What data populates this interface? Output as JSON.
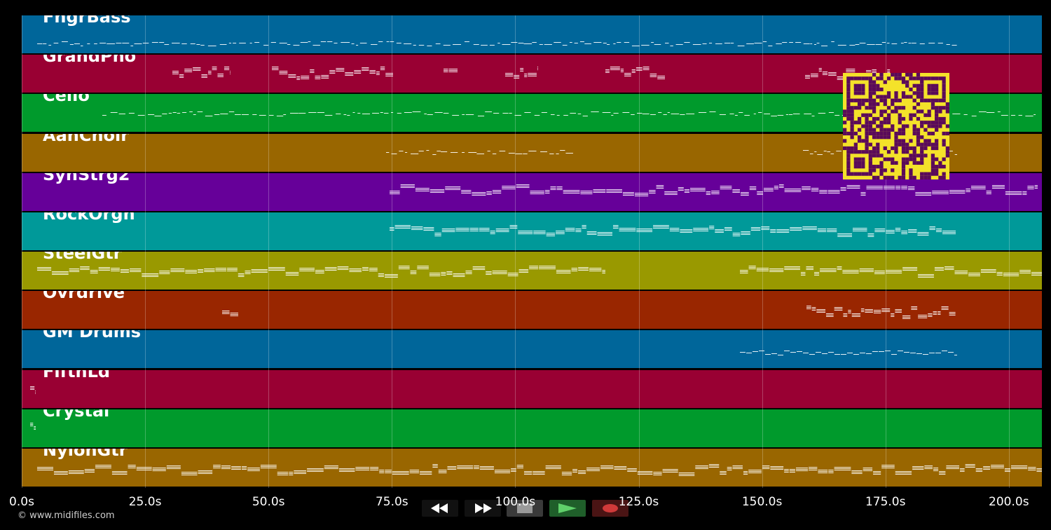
{
  "tracks": [
    {
      "name": "FngrBass",
      "color": "#00669a",
      "pattern": {
        "type": "line",
        "start": 22,
        "end": 1335,
        "y": 40,
        "density": "sparse"
      }
    },
    {
      "name": "GrandPno",
      "color": "#990033",
      "pattern": {
        "type": "blocks",
        "segments": [
          [
            215,
            298
          ],
          [
            357,
            530
          ],
          [
            602,
            622
          ],
          [
            690,
            737
          ],
          [
            833,
            918
          ],
          [
            1118,
            1240
          ]
        ],
        "y": 24
      }
    },
    {
      "name": "Cello",
      "color": "#009a2c",
      "pattern": {
        "type": "line",
        "start": 115,
        "end": 1447,
        "y": 28,
        "density": "sparse"
      }
    },
    {
      "name": "AahChoir",
      "color": "#996600",
      "pattern": {
        "type": "line",
        "segments": [
          [
            520,
            790
          ],
          [
            1115,
            1335
          ]
        ],
        "y": 26,
        "density": "sparse"
      }
    },
    {
      "name": "SynStrg2",
      "color": "#660099",
      "pattern": {
        "type": "dense",
        "start": 525,
        "end": 1450,
        "y": 22
      }
    },
    {
      "name": "RockOrgn",
      "color": "#009999",
      "pattern": {
        "type": "dense",
        "start": 525,
        "end": 1333,
        "y": 24
      }
    },
    {
      "name": "SteelGtr",
      "color": "#999900",
      "pattern": {
        "type": "dense",
        "segments": [
          [
            22,
            833
          ],
          [
            1025,
            1456
          ]
        ],
        "y": 26
      }
    },
    {
      "name": "Ovrdrive",
      "color": "#992600",
      "pattern": {
        "type": "blocks",
        "segments": [
          [
            286,
            309
          ],
          [
            1120,
            1333
          ]
        ],
        "y": 28
      }
    },
    {
      "name": "GM Drums",
      "color": "#00669a",
      "pattern": {
        "type": "line",
        "segments": [
          [
            1025,
            1335
          ]
        ],
        "y": 32,
        "density": "solid"
      }
    },
    {
      "name": "FifthLd",
      "color": "#990033",
      "pattern": {
        "type": "blocks",
        "segments": [
          [
            12,
            20
          ]
        ],
        "y": 24
      }
    },
    {
      "name": "Crystal",
      "color": "#009a2c",
      "pattern": {
        "type": "blocks",
        "segments": [
          [
            12,
            20
          ]
        ],
        "y": 22
      }
    },
    {
      "name": "NylonGtr",
      "color": "#996600",
      "pattern": {
        "type": "dense",
        "start": 22,
        "end": 1456,
        "y": 28
      }
    }
  ],
  "x_axis": {
    "labels": [
      "0.0s",
      "25.0s",
      "50.0s",
      "75.0s",
      "100.0s",
      "125.0s",
      "150.0s",
      "175.0s",
      "200.0s"
    ],
    "values": [
      0,
      25,
      50,
      75,
      100,
      125,
      150,
      175,
      200
    ],
    "max": 206.7
  },
  "copyright": "© www.midifiles.com",
  "transport": {
    "buttons": [
      {
        "name": "rewind-button",
        "icon": "rewind-icon",
        "bg": "#1a1a1a"
      },
      {
        "name": "fast-forward-button",
        "icon": "fast-forward-icon",
        "bg": "#1a1a1a"
      },
      {
        "name": "stop-button",
        "icon": "stop-icon",
        "bg": "#3a3a3a"
      },
      {
        "name": "play-button",
        "icon": "play-icon",
        "bg": "#1f5f2a"
      },
      {
        "name": "record-button",
        "icon": "record-icon",
        "bg": "#4a1414"
      }
    ]
  },
  "qr": {
    "fg": "#5a0a5a",
    "bg": "#f4e22a"
  }
}
